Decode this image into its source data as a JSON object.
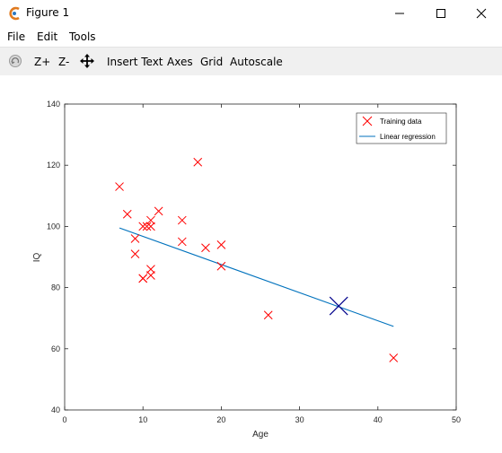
{
  "window": {
    "title": "Figure 1",
    "controls": {
      "minimize": "minimize",
      "maximize": "maximize",
      "close": "close"
    }
  },
  "menu": {
    "items": [
      "File",
      "Edit",
      "Tools"
    ]
  },
  "toolbar": {
    "zoom_in": "Z+",
    "zoom_out": "Z-",
    "insert_text": "Insert Text",
    "axes": "Axes",
    "grid": "Grid",
    "autoscale": "Autoscale"
  },
  "chart_data": {
    "type": "scatter",
    "title": "",
    "xlabel": "Age",
    "ylabel": "IQ",
    "xlim": [
      0,
      50
    ],
    "ylim": [
      40,
      140
    ],
    "xticks": [
      0,
      10,
      20,
      30,
      40,
      50
    ],
    "yticks": [
      40,
      60,
      80,
      100,
      120,
      140
    ],
    "grid": false,
    "legend_position": "top-right",
    "series": [
      {
        "name": "Training data",
        "marker": "x",
        "color": "#ff0000",
        "x": [
          7,
          8,
          9,
          9,
          10,
          10,
          10,
          10.5,
          11,
          11,
          11,
          11,
          12,
          15,
          15,
          17,
          18,
          20,
          20,
          26,
          42
        ],
        "y": [
          113,
          104,
          96,
          91,
          100,
          83,
          83,
          100,
          100,
          102,
          86,
          84,
          105,
          102,
          95,
          121,
          93,
          94,
          87,
          71,
          57
        ]
      },
      {
        "name": "Linear regression",
        "type": "line",
        "color": "#0072bd",
        "x": [
          7,
          42
        ],
        "y": [
          99.5,
          67.3
        ]
      }
    ],
    "highlight": {
      "marker": "x",
      "color": "#00008b",
      "x": 35,
      "y": 74
    }
  }
}
